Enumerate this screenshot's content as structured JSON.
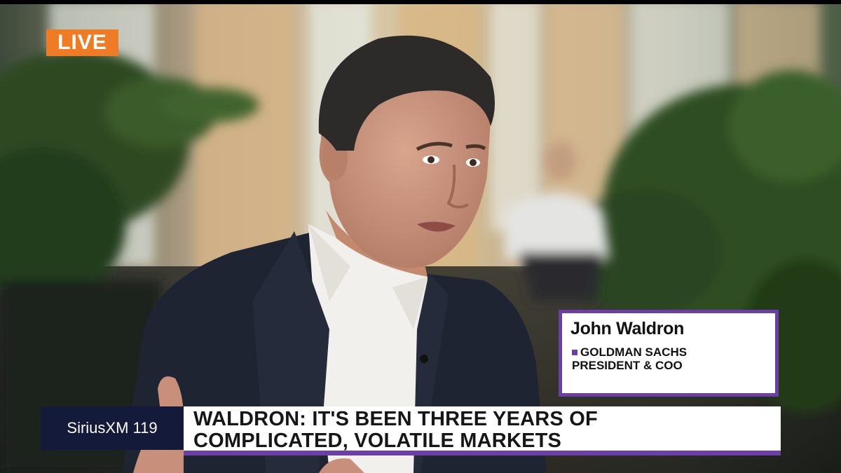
{
  "badge": {
    "label": "LIVE",
    "color": "#ef7c24"
  },
  "nameplate": {
    "name": "John Waldron",
    "title_line1": "GOLDMAN SACHS",
    "title_line2": "PRESIDENT & COO",
    "accent": "#6c3fa8"
  },
  "lower_third": {
    "channel": "SiriusXM 119",
    "headline_line1": "WALDRON: IT'S BEEN THREE YEARS OF",
    "headline_line2": "COMPLICATED, VOLATILE MARKETS"
  }
}
